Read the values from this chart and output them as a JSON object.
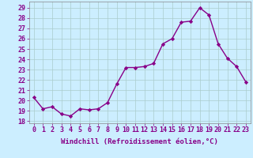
{
  "x": [
    0,
    1,
    2,
    3,
    4,
    5,
    6,
    7,
    8,
    9,
    10,
    11,
    12,
    13,
    14,
    15,
    16,
    17,
    18,
    19,
    20,
    21,
    22,
    23
  ],
  "y": [
    20.3,
    19.2,
    19.4,
    18.7,
    18.5,
    19.2,
    19.1,
    19.2,
    19.8,
    21.6,
    23.2,
    23.2,
    23.3,
    23.6,
    25.5,
    26.0,
    27.6,
    27.7,
    29.0,
    28.3,
    25.5,
    24.1,
    23.3,
    21.8
  ],
  "line_color": "#880088",
  "marker": "D",
  "marker_size": 2.2,
  "bg_color": "#cceeff",
  "grid_color": "#aacccc",
  "xlabel": "Windchill (Refroidissement éolien,°C)",
  "ylim": [
    17.8,
    29.6
  ],
  "xlim": [
    -0.5,
    23.5
  ],
  "yticks": [
    18,
    19,
    20,
    21,
    22,
    23,
    24,
    25,
    26,
    27,
    28,
    29
  ],
  "xticks": [
    0,
    1,
    2,
    3,
    4,
    5,
    6,
    7,
    8,
    9,
    10,
    11,
    12,
    13,
    14,
    15,
    16,
    17,
    18,
    19,
    20,
    21,
    22,
    23
  ],
  "xlabel_fontsize": 6.5,
  "tick_fontsize": 6.0,
  "line_width": 1.0,
  "text_color": "#880088"
}
